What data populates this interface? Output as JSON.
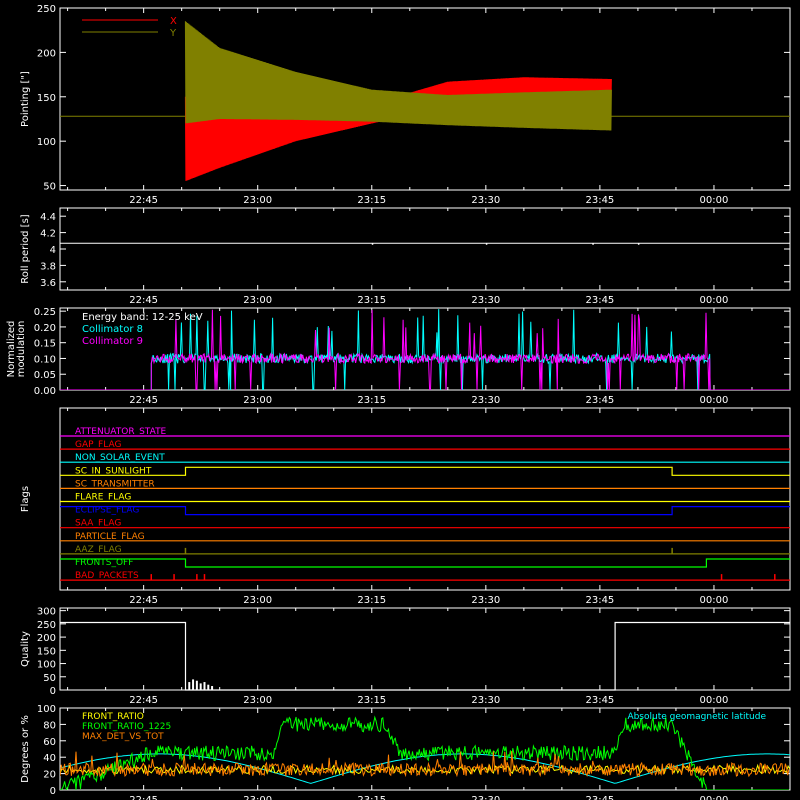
{
  "colors": {
    "x": "#ff0000",
    "y": "#808000",
    "white": "#ffffff",
    "cyan": "#00ffff",
    "magenta": "#ff00ff",
    "green": "#00ff00",
    "orange": "#ff8000",
    "yellow": "#ffff00",
    "blue": "#0000ff"
  },
  "time_axis": {
    "tick_labels": [
      "22:45",
      "23:00",
      "23:15",
      "23:30",
      "23:45",
      "00:00"
    ],
    "tick_minutes": [
      1365,
      1380,
      1395,
      1410,
      1425,
      1440
    ],
    "range_minutes": [
      1354,
      1450
    ]
  },
  "chart_data": [
    {
      "id": "pointing",
      "type": "line",
      "ylabel": "Pointing [\"]",
      "ylim": [
        45,
        250
      ],
      "yticks": [
        50,
        100,
        150,
        200,
        250
      ],
      "legend": [
        {
          "name": "X",
          "color": "#ff0000"
        },
        {
          "name": "Y",
          "color": "#808000"
        }
      ],
      "baseline_value": 128,
      "active_range_minutes": [
        1370.5,
        1426.5
      ],
      "series": [
        {
          "name": "X",
          "color": "#ff0000",
          "envelope_time": [
            1370.5,
            1375,
            1385,
            1395,
            1405,
            1415,
            1426.5
          ],
          "envelope_upper": [
            150,
            144,
            133,
            142,
            167,
            172,
            170
          ],
          "envelope_lower": [
            55,
            70,
            100,
            120,
            138,
            140,
            140
          ]
        },
        {
          "name": "Y",
          "color": "#808000",
          "envelope_time": [
            1370.5,
            1375,
            1385,
            1395,
            1405,
            1415,
            1426.5
          ],
          "envelope_upper": [
            235,
            205,
            178,
            158,
            152,
            155,
            158
          ],
          "envelope_lower": [
            120,
            125,
            124,
            122,
            118,
            115,
            112
          ]
        }
      ]
    },
    {
      "id": "roll",
      "type": "line",
      "ylabel": "Roll period [s]",
      "ylim": [
        3.5,
        4.5
      ],
      "yticks": [
        3.6,
        3.8,
        4.0,
        4.2,
        4.4
      ],
      "value": 4.07
    },
    {
      "id": "modulation",
      "type": "line",
      "ylabel_lines": [
        "Normalized",
        "modulation"
      ],
      "ylim": [
        0,
        0.26
      ],
      "yticks": [
        0.0,
        0.05,
        0.1,
        0.15,
        0.2,
        0.25
      ],
      "ytick_labels": [
        "0.00",
        "0.05",
        "0.10",
        "0.15",
        "0.20",
        "0.25"
      ],
      "annotations": [
        "Energy band: 12-25 keV"
      ],
      "active_range_minutes": [
        1366,
        1439.5
      ],
      "series": [
        {
          "name": "Collimator 8",
          "color": "#00ffff",
          "typical": 0.1
        },
        {
          "name": "Collimator 9",
          "color": "#ff00ff",
          "typical": 0.1
        }
      ]
    },
    {
      "id": "flags",
      "type": "line",
      "ylabel": "Flags",
      "rows": [
        {
          "label": "ATTENUATOR_STATE",
          "color": "#ff00ff",
          "segments": [
            [
              1354,
              1450,
              0
            ]
          ]
        },
        {
          "label": "GAP_FLAG",
          "color": "#ff0000",
          "segments": [
            [
              1354,
              1450,
              0
            ]
          ]
        },
        {
          "label": "NON_SOLAR_EVENT",
          "color": "#00ffff",
          "segments": [
            [
              1354,
              1450,
              0
            ]
          ]
        },
        {
          "label": "SC_IN_SUNLIGHT",
          "color": "#ffff00",
          "segments": [
            [
              1354,
              1370.5,
              0
            ],
            [
              1370.5,
              1434.5,
              1
            ],
            [
              1434.5,
              1450,
              0
            ]
          ]
        },
        {
          "label": "SC_TRANSMITTER",
          "color": "#ff8000",
          "segments": [
            [
              1354,
              1450,
              0
            ]
          ]
        },
        {
          "label": "FLARE_FLAG",
          "color": "#ffff00",
          "segments": [
            [
              1354,
              1450,
              0
            ]
          ]
        },
        {
          "label": "ECLIPSE_FLAG",
          "color": "#0000ff",
          "segments": [
            [
              1354,
              1370.5,
              1
            ],
            [
              1370.5,
              1434.5,
              0
            ],
            [
              1434.5,
              1450,
              1
            ]
          ]
        },
        {
          "label": "SAA_FLAG",
          "color": "#ff0000",
          "segments": [
            [
              1354,
              1450,
              0
            ]
          ]
        },
        {
          "label": "PARTICLE_FLAG",
          "color": "#ff8000",
          "segments": [
            [
              1354,
              1450,
              0
            ]
          ]
        },
        {
          "label": "AAZ_FLAG",
          "color": "#808000",
          "pulses": [
            1370.5,
            1434.5
          ]
        },
        {
          "label": "FRONTS_OFF",
          "color": "#00ff00",
          "segments": [
            [
              1354,
              1370.5,
              1
            ],
            [
              1370.5,
              1439,
              0
            ],
            [
              1439,
              1450,
              1
            ]
          ]
        },
        {
          "label": "BAD_PACKETS",
          "color": "#ff0000",
          "pulses": [
            1366,
            1369,
            1372,
            1373,
            1441,
            1448
          ]
        }
      ]
    },
    {
      "id": "quality",
      "type": "line",
      "ylabel": "Quality",
      "ylim": [
        0,
        310
      ],
      "yticks": [
        0,
        50,
        100,
        150,
        200,
        250,
        300
      ],
      "segments": [
        [
          1354,
          1370.5,
          255
        ],
        [
          1370.5,
          1427,
          0
        ],
        [
          1427,
          1450,
          255
        ]
      ],
      "spikes": [
        [
          1371,
          30
        ],
        [
          1371.5,
          40
        ],
        [
          1372,
          35
        ],
        [
          1372.5,
          25
        ],
        [
          1373,
          30
        ],
        [
          1373.5,
          20
        ],
        [
          1374,
          15
        ]
      ]
    },
    {
      "id": "front_ratio",
      "type": "line",
      "ylabel": "Degrees or %",
      "ylim": [
        0,
        100
      ],
      "yticks": [
        0,
        20,
        40,
        60,
        80,
        100
      ],
      "annotations": [
        "Absolute geomagnetic latitude"
      ],
      "annotation_color": "#00ffff",
      "series": [
        {
          "name": "FRONT_RATIO",
          "color": "#ffff00"
        },
        {
          "name": "FRONT_RATIO_1225",
          "color": "#00ff00",
          "level_time": [
            1354,
            1366,
            1382,
            1383.5,
            1397,
            1398.5,
            1427,
            1428,
            1434.5,
            1439,
            1450
          ],
          "level_value": [
            0,
            45,
            45,
            80,
            80,
            45,
            45,
            80,
            80,
            0,
            0
          ]
        },
        {
          "name": "MAX_DET_VS_TOT",
          "color": "#ff8000",
          "typical": 25
        }
      ]
    }
  ]
}
